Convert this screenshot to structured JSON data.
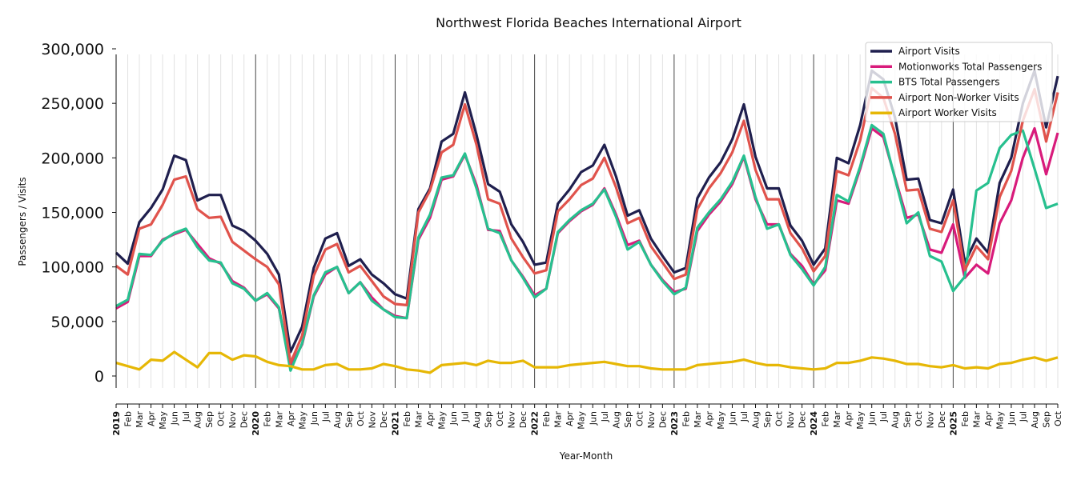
{
  "chart_data": {
    "type": "line",
    "title": "Northwest Florida Beaches International Airport",
    "xlabel": "Year-Month",
    "ylabel": "Passengers / Visits",
    "ylim": [
      -10000,
      300000
    ],
    "yticks": [
      0,
      50000,
      100000,
      150000,
      200000,
      250000,
      300000
    ],
    "ytick_labels": [
      "0",
      "50,000",
      "100,000",
      "150,000",
      "200,000",
      "250,000",
      "300,000"
    ],
    "grid": "vertical, monthly; dark line at each January",
    "legend_placement": "top-right",
    "x_tick_labels": [
      "2019",
      "Feb",
      "Mar",
      "Apr",
      "May",
      "Jun",
      "Jul",
      "Aug",
      "Sep",
      "Oct",
      "Nov",
      "Dec",
      "2020",
      "Feb",
      "Mar",
      "Apr",
      "May",
      "Jun",
      "Jul",
      "Aug",
      "Sep",
      "Oct",
      "Nov",
      "Dec",
      "2021",
      "Feb",
      "Mar",
      "Apr",
      "May",
      "Jun",
      "Jul",
      "Aug",
      "Sep",
      "Oct",
      "Nov",
      "Dec",
      "2022",
      "Feb",
      "Mar",
      "Apr",
      "May",
      "Jun",
      "Jul",
      "Aug",
      "Sep",
      "Oct",
      "Nov",
      "Dec",
      "2023",
      "Feb",
      "Mar",
      "Apr",
      "May",
      "Jun",
      "Jul",
      "Aug",
      "Sep",
      "Oct",
      "Nov",
      "Dec",
      "2024",
      "Feb",
      "Mar",
      "Apr",
      "May",
      "Jun",
      "Jul",
      "Aug",
      "Sep",
      "Oct",
      "Nov",
      "Dec",
      "2025",
      "Feb",
      "Mar",
      "Apr",
      "May",
      "Jun",
      "Jul",
      "Aug",
      "Sep",
      "Oct"
    ],
    "series": [
      {
        "name": "Airport Visits",
        "color": "#1f1f4e",
        "values": [
          113000,
          103000,
          141000,
          154000,
          171000,
          202000,
          198000,
          161000,
          166000,
          166000,
          138000,
          133000,
          124000,
          112000,
          93000,
          22000,
          45000,
          99000,
          126000,
          131000,
          101000,
          107000,
          93000,
          85000,
          75000,
          71000,
          153000,
          172000,
          215000,
          222000,
          260000,
          221000,
          176000,
          169000,
          139000,
          123000,
          102000,
          104000,
          158000,
          171000,
          187000,
          193000,
          212000,
          183000,
          147000,
          152000,
          126000,
          110000,
          95000,
          99000,
          163000,
          182000,
          196000,
          217000,
          249000,
          201000,
          172000,
          172000,
          138000,
          124000,
          102000,
          117000,
          200000,
          195000,
          230000,
          280000,
          272000,
          237000,
          180000,
          181000,
          143000,
          140000,
          171000,
          104000,
          126000,
          113000,
          177000,
          200000,
          250000,
          280000,
          228000,
          275000
        ]
      },
      {
        "name": "Motionworks Total Passengers",
        "color": "#d81b7b",
        "values": [
          62000,
          68000,
          110000,
          110000,
          125000,
          130000,
          134000,
          121000,
          108000,
          103000,
          87000,
          81000,
          69000,
          75000,
          62000,
          9000,
          29000,
          73000,
          93000,
          100000,
          76000,
          86000,
          72000,
          61000,
          55000,
          53000,
          125000,
          145000,
          180000,
          183000,
          203000,
          175000,
          134000,
          133000,
          106000,
          91000,
          74000,
          80000,
          131000,
          142000,
          151000,
          157000,
          172000,
          148000,
          120000,
          124000,
          102000,
          88000,
          77000,
          80000,
          133000,
          148000,
          160000,
          176000,
          201000,
          162000,
          139000,
          139000,
          112000,
          101000,
          84000,
          97000,
          161000,
          158000,
          190000,
          227000,
          219000,
          182000,
          145000,
          148000,
          116000,
          113000,
          139000,
          90000,
          102000,
          94000,
          140000,
          161000,
          200000,
          227000,
          185000,
          223000
        ]
      },
      {
        "name": "BTS Total Passengers",
        "color": "#27c08f",
        "values": [
          64000,
          70000,
          112000,
          111000,
          124000,
          131000,
          135000,
          118000,
          106000,
          104000,
          85000,
          80000,
          69000,
          76000,
          63000,
          5000,
          30000,
          74000,
          95000,
          100000,
          76000,
          86000,
          69000,
          61000,
          54000,
          53000,
          127000,
          148000,
          182000,
          184000,
          204000,
          172000,
          135000,
          131000,
          106000,
          90000,
          72000,
          80000,
          132000,
          143000,
          152000,
          158000,
          171000,
          146000,
          116000,
          123000,
          102000,
          87000,
          75000,
          81000,
          136000,
          150000,
          162000,
          178000,
          202000,
          164000,
          135000,
          139000,
          111000,
          98000,
          83000,
          100000,
          166000,
          160000,
          192000,
          230000,
          222000,
          181000,
          140000,
          150000,
          110000,
          105000,
          78000,
          91000,
          170000,
          177000,
          209000,
          221000,
          225000,
          190000,
          154000,
          158000
        ]
      },
      {
        "name": "Airport Non-Worker Visits",
        "color": "#e0534c",
        "values": [
          101000,
          93000,
          135000,
          139000,
          157000,
          180000,
          183000,
          153000,
          145000,
          146000,
          123000,
          115000,
          107000,
          100000,
          84000,
          12000,
          37000,
          92000,
          116000,
          121000,
          95000,
          101000,
          87000,
          73000,
          66000,
          65000,
          150000,
          170000,
          205000,
          212000,
          249000,
          212000,
          162000,
          158000,
          126000,
          109000,
          94000,
          97000,
          151000,
          162000,
          175000,
          181000,
          200000,
          173000,
          140000,
          145000,
          119000,
          104000,
          89000,
          93000,
          153000,
          172000,
          186000,
          205000,
          234000,
          189000,
          162000,
          162000,
          131000,
          117000,
          96000,
          110000,
          188000,
          184000,
          216000,
          264000,
          255000,
          222000,
          170000,
          171000,
          135000,
          132000,
          161000,
          97000,
          119000,
          107000,
          164000,
          188000,
          234000,
          263000,
          215000,
          260000
        ]
      },
      {
        "name": "Airport Worker Visits",
        "color": "#e6b705",
        "values": [
          12000,
          9000,
          6000,
          15000,
          14000,
          22000,
          15000,
          8000,
          21000,
          21000,
          15000,
          19000,
          18000,
          13000,
          10000,
          9000,
          6000,
          6000,
          10000,
          11000,
          6000,
          6000,
          7000,
          11000,
          9000,
          6000,
          5000,
          3000,
          10000,
          11000,
          12000,
          10000,
          14000,
          12000,
          12000,
          14000,
          8000,
          8000,
          8000,
          10000,
          11000,
          12000,
          13000,
          11000,
          9000,
          9000,
          7000,
          6000,
          6000,
          6000,
          10000,
          11000,
          12000,
          13000,
          15000,
          12000,
          10000,
          10000,
          8000,
          7000,
          6000,
          7000,
          12000,
          12000,
          14000,
          17000,
          16000,
          14000,
          11000,
          11000,
          9000,
          8000,
          10000,
          7000,
          8000,
          7000,
          11000,
          12000,
          15000,
          17000,
          14000,
          17000
        ]
      }
    ]
  }
}
